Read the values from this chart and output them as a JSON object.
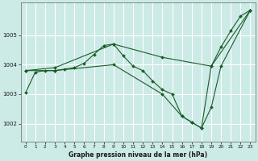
{
  "xlabel": "Graphe pression niveau de la mer (hPa)",
  "bg_color": "#cceae6",
  "grid_color": "#ffffff",
  "line_color": "#1a5c28",
  "ylim": [
    1001.4,
    1006.1
  ],
  "xlim": [
    -0.5,
    23.5
  ],
  "yticks": [
    1002,
    1003,
    1004,
    1005
  ],
  "xticks": [
    0,
    1,
    2,
    3,
    4,
    5,
    6,
    7,
    8,
    9,
    10,
    11,
    12,
    13,
    14,
    15,
    16,
    17,
    18,
    19,
    20,
    21,
    22,
    23
  ],
  "series": [
    {
      "x": [
        0,
        1,
        2,
        3,
        4,
        5,
        6,
        7,
        8,
        9,
        10,
        11,
        12,
        13,
        14,
        15,
        16,
        17,
        18,
        19,
        20,
        21,
        22,
        23
      ],
      "y": [
        1003.05,
        1003.75,
        1003.8,
        1003.8,
        1003.85,
        1003.9,
        1004.05,
        1004.35,
        1004.65,
        1004.7,
        1004.3,
        1003.95,
        1003.8,
        1003.45,
        1003.15,
        1003.0,
        1002.25,
        1002.05,
        1001.85,
        1003.95,
        1004.6,
        1005.15,
        1005.65,
        1005.85
      ]
    },
    {
      "x": [
        0,
        3,
        9,
        14,
        19,
        23
      ],
      "y": [
        1003.8,
        1003.9,
        1004.7,
        1004.25,
        1003.95,
        1005.85
      ]
    },
    {
      "x": [
        0,
        3,
        9,
        14,
        16,
        17,
        18,
        19,
        20,
        23
      ],
      "y": [
        1003.8,
        1003.8,
        1004.0,
        1003.0,
        1002.25,
        1002.05,
        1001.85,
        1002.55,
        1003.95,
        1005.85
      ]
    }
  ]
}
